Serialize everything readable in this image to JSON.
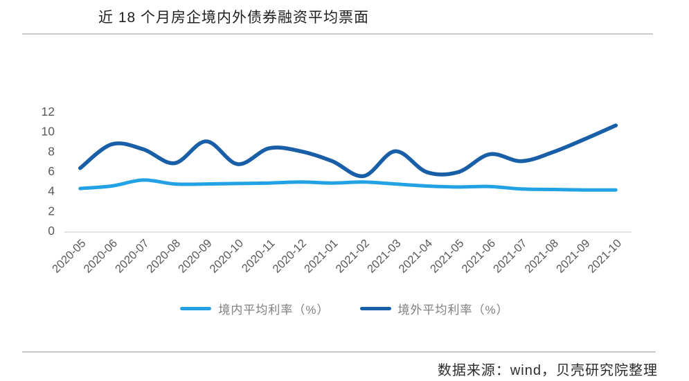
{
  "title": "近 18 个月房企境内外债券融资平均票面",
  "legend": [
    {
      "label": "境内平均利率（%）",
      "color": "#22A2E4"
    },
    {
      "label": "境外平均利率（%）",
      "color": "#185FA8"
    }
  ],
  "footer": {
    "source_text": "数据来源：wind，贝壳研究院整理"
  },
  "axis_colors": {
    "tick_label": "#595959",
    "baseline": "#d9d9d9"
  },
  "chart_data": {
    "type": "line",
    "title": "近 18 个月房企境内外债券融资平均票面",
    "categories": [
      "2020-05",
      "2020-06",
      "2020-07",
      "2020-08",
      "2020-09",
      "2020-10",
      "2020-11",
      "2020-12",
      "2021-01",
      "2021-02",
      "2021-03",
      "2021-04",
      "2021-05",
      "2021-06",
      "2021-07",
      "2021-08",
      "2021-09",
      "2021-10"
    ],
    "series": [
      {
        "name": "境内平均利率（%）",
        "color": "#22A2E4",
        "values": [
          4.25,
          4.5,
          5.1,
          4.7,
          4.7,
          4.75,
          4.8,
          4.9,
          4.8,
          4.9,
          4.7,
          4.5,
          4.4,
          4.45,
          4.2,
          4.15,
          4.1,
          4.1
        ]
      },
      {
        "name": "境外平均利率（%）",
        "color": "#185FA8",
        "values": [
          6.3,
          8.7,
          8.2,
          6.8,
          9.0,
          6.7,
          8.3,
          8.0,
          7.0,
          5.5,
          8.0,
          5.9,
          5.9,
          7.7,
          7.0,
          7.9,
          9.2,
          10.6
        ]
      }
    ],
    "ylim": [
      0,
      12
    ],
    "yticks": [
      0,
      2,
      4,
      6,
      8,
      10,
      12
    ],
    "grid": false,
    "smooth": true,
    "legend_position": "bottom",
    "x_label_rotation": -45
  }
}
